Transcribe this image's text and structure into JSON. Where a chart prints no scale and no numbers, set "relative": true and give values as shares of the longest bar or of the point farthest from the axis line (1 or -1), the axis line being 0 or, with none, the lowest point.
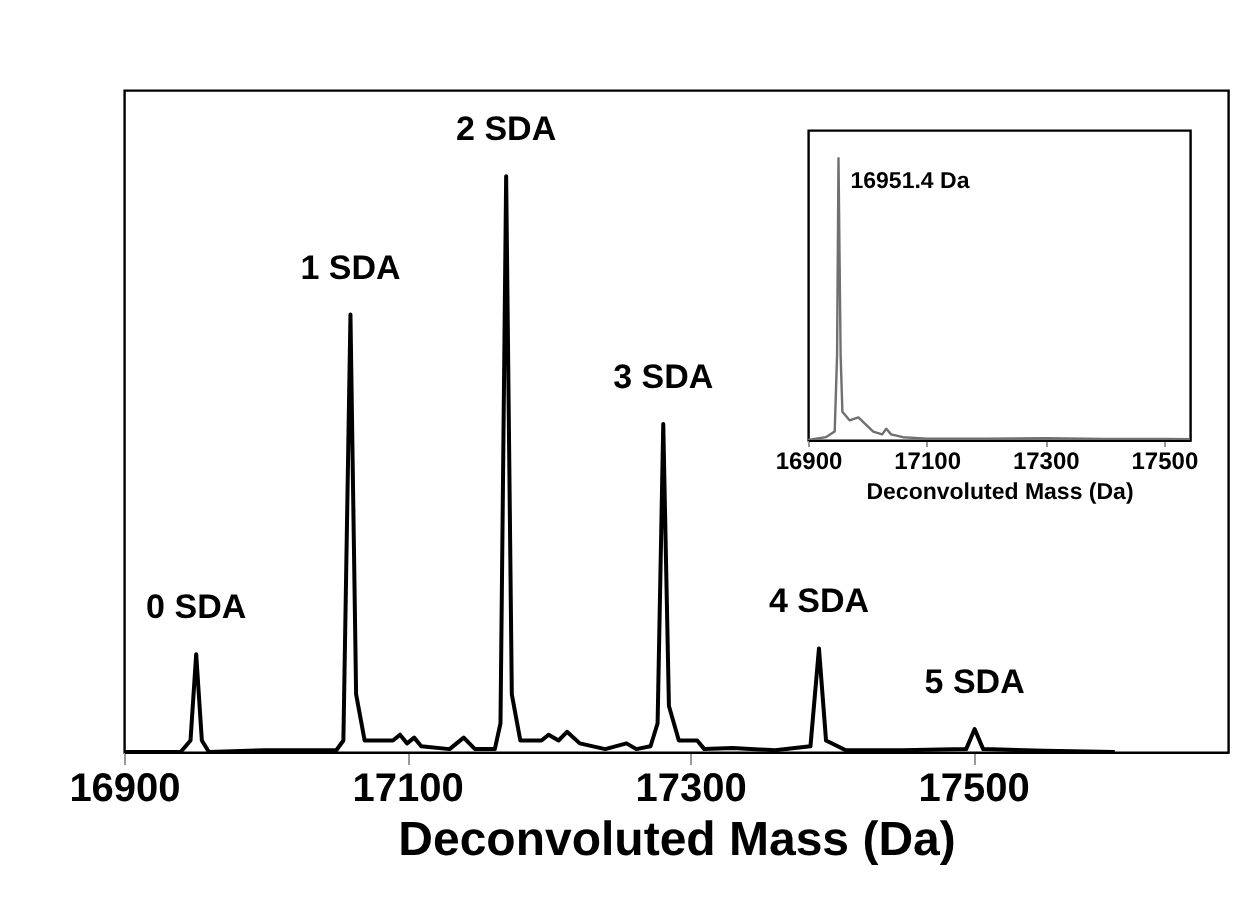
{
  "chart_data": [
    {
      "type": "line",
      "xlabel": "Deconvoluted Mass (Da)",
      "relative": true,
      "xlim": [
        16900,
        17680
      ],
      "xticks": [
        16900,
        17100,
        17300,
        17500
      ],
      "grid": false,
      "x": [
        16900,
        16940,
        16947,
        16951,
        16955,
        16960,
        17000,
        17050,
        17055,
        17060,
        17064,
        17070,
        17090,
        17095,
        17100,
        17105,
        17110,
        17130,
        17140,
        17148,
        17162,
        17166,
        17170,
        17174,
        17180,
        17195,
        17200,
        17207,
        17213,
        17222,
        17240,
        17255,
        17262,
        17272,
        17277,
        17281,
        17285,
        17292,
        17305,
        17310,
        17330,
        17360,
        17385,
        17391,
        17396,
        17410,
        17450,
        17495,
        17501,
        17507,
        17550,
        17600
      ],
      "series": [
        {
          "color": "#000000",
          "values": [
            0,
            0,
            0.02,
            0.17,
            0.02,
            0,
            0.003,
            0.003,
            0.02,
            0.76,
            0.1,
            0.02,
            0.02,
            0.03,
            0.015,
            0.025,
            0.01,
            0.005,
            0.025,
            0.005,
            0.005,
            0.05,
            1,
            0.1,
            0.02,
            0.02,
            0.03,
            0.02,
            0.035,
            0.015,
            0.005,
            0.015,
            0.005,
            0.01,
            0.05,
            0.57,
            0.08,
            0.02,
            0.02,
            0.005,
            0.007,
            0.003,
            0.01,
            0.18,
            0.02,
            0.003,
            0.003,
            0.005,
            0.04,
            0.005,
            0.002,
            0
          ]
        }
      ],
      "annotations": [
        {
          "text": "0 SDA",
          "x": 16951,
          "y": 0.17
        },
        {
          "text": "1 SDA",
          "x": 17060,
          "y": 0.76
        },
        {
          "text": "2 SDA",
          "x": 17170,
          "y": 1
        },
        {
          "text": "3 SDA",
          "x": 17281,
          "y": 0.57
        },
        {
          "text": "4 SDA",
          "x": 17391,
          "y": 0.18
        },
        {
          "text": "5 SDA",
          "x": 17501,
          "y": 0.04
        }
      ]
    },
    {
      "type": "line",
      "xlabel": "Deconvoluted Mass (Da)",
      "relative": true,
      "xlim": [
        16900,
        17544
      ],
      "xticks": [
        16900,
        17100,
        17300,
        17500
      ],
      "grid": false,
      "x": [
        16900,
        16930,
        16945,
        16949,
        16951.4,
        16955,
        16958,
        16970,
        16985,
        16995,
        17010,
        17025,
        17032,
        17040,
        17060,
        17100,
        17200,
        17300,
        17400,
        17500,
        17544
      ],
      "series": [
        {
          "color": "#707070",
          "values": [
            0,
            0.01,
            0.03,
            0.3,
            1,
            0.3,
            0.1,
            0.07,
            0.08,
            0.06,
            0.03,
            0.02,
            0.04,
            0.02,
            0.01,
            0.005,
            0.005,
            0.006,
            0.004,
            0.004,
            0.003
          ]
        }
      ],
      "annotations": [
        {
          "text": "16951.4 Da",
          "x": 16951.4,
          "y": 1
        }
      ]
    }
  ]
}
